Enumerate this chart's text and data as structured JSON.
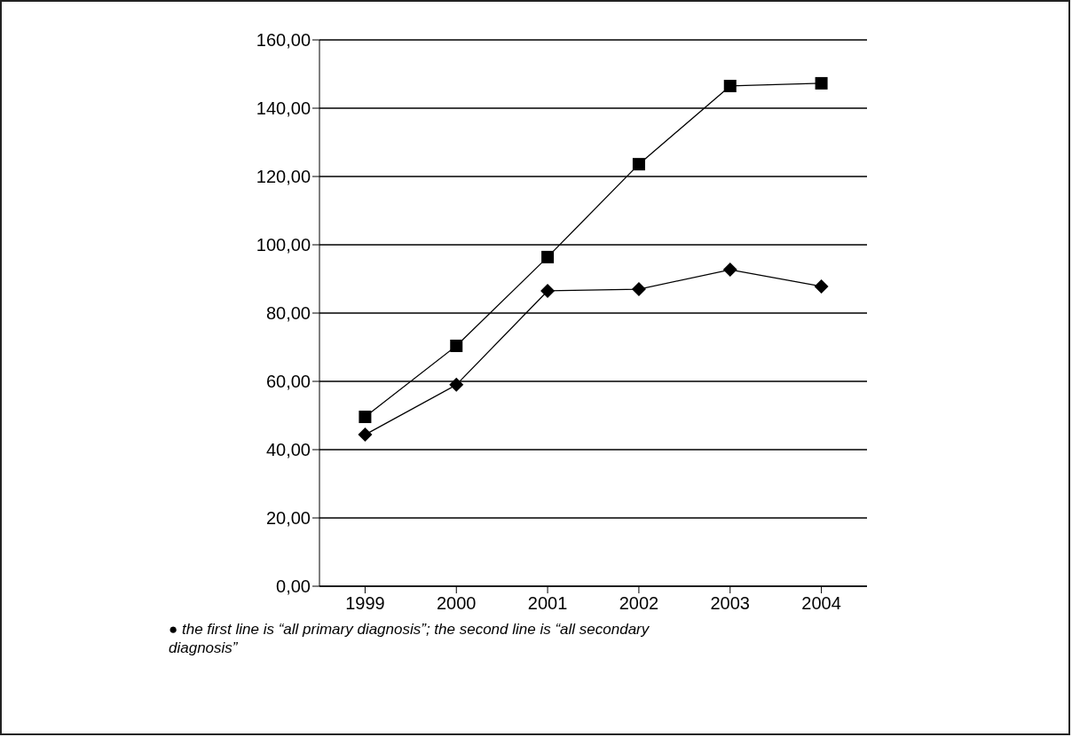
{
  "chart_data": {
    "type": "line",
    "categories": [
      "1999",
      "2000",
      "2001",
      "2002",
      "2003",
      "2004"
    ],
    "series": [
      {
        "color": "#000000",
        "marker": "square",
        "values": [
          49.6,
          70.4,
          96.4,
          123.6,
          146.5,
          147.3
        ]
      },
      {
        "color": "#000000",
        "marker": "diamond",
        "values": [
          44.4,
          59.0,
          86.5,
          87.0,
          92.7,
          87.8
        ]
      }
    ],
    "ylim": [
      0,
      160
    ],
    "yticks": [
      {
        "value": 0,
        "label": "0,00"
      },
      {
        "value": 20,
        "label": "20,00"
      },
      {
        "value": 40,
        "label": "40,00"
      },
      {
        "value": 60,
        "label": "60,00"
      },
      {
        "value": 80,
        "label": "80,00"
      },
      {
        "value": 100,
        "label": "100,00"
      },
      {
        "value": 120,
        "label": "120,00"
      },
      {
        "value": 140,
        "label": "140,00"
      },
      {
        "value": 160,
        "label": "160,00"
      }
    ],
    "grid": "y",
    "legend": false,
    "line_style": "solid",
    "annotations": [
      "● the first line is “all primary diagnosis”; the second line is “all secondary diagnosis”"
    ]
  }
}
